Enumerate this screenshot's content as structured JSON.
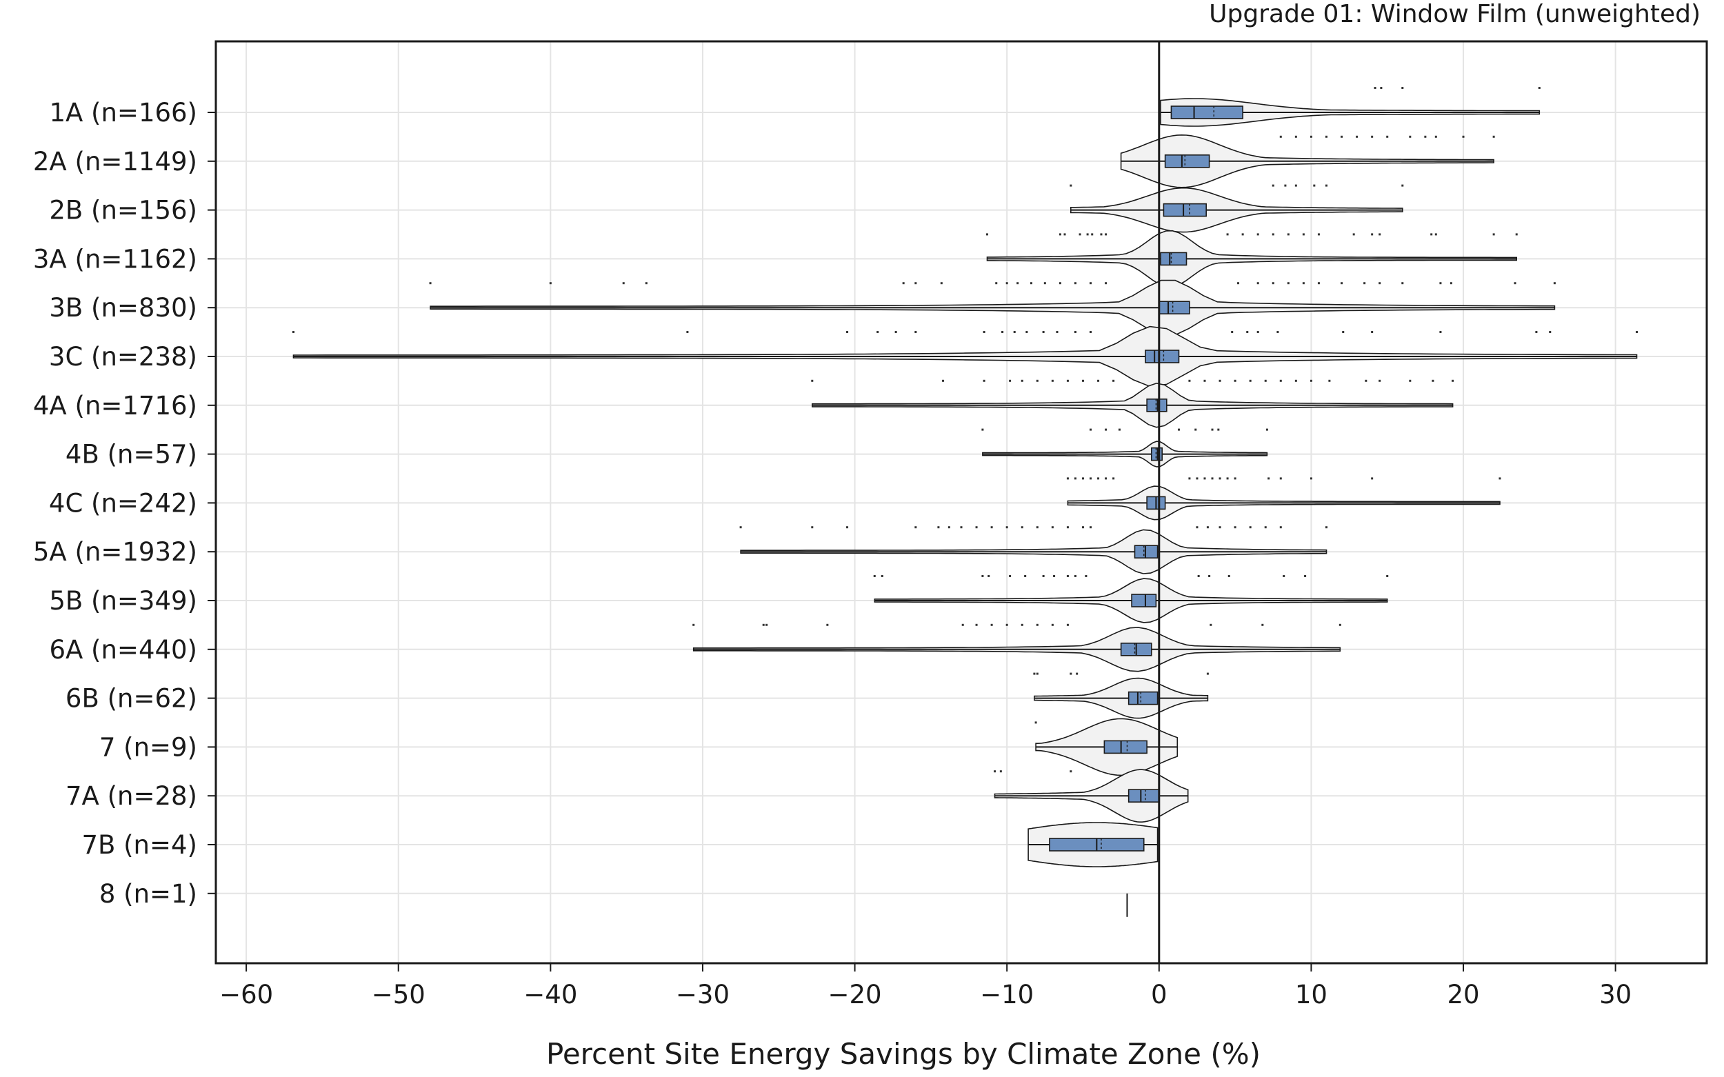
{
  "chart_data": {
    "type": "violin",
    "title": "Upgrade 01: Window Film (unweighted)",
    "xlabel": "Percent Site Energy Savings by Climate Zone (%)",
    "ylabel": "",
    "xlim": [
      -62,
      36
    ],
    "xticks": [
      -60,
      -50,
      -40,
      -30,
      -20,
      -10,
      0,
      10,
      20,
      30
    ],
    "xtick_labels": [
      "−60",
      "−50",
      "−40",
      "−30",
      "−20",
      "−10",
      "0",
      "10",
      "20",
      "30"
    ],
    "grid": true,
    "box_color": "#6b8fbf",
    "violin_fill": "#f2f2f2",
    "categories": [
      {
        "label": "1A (n=166)",
        "min": 0.1,
        "q1": 0.8,
        "median": 2.3,
        "mean": 3.6,
        "q3": 5.5,
        "max": 25.0,
        "peak": 0.6,
        "outliers": [
          14.2,
          14.6,
          16.0,
          25.0
        ]
      },
      {
        "label": "2A (n=1149)",
        "min": -2.5,
        "q1": 0.4,
        "median": 1.5,
        "mean": 1.7,
        "q3": 3.3,
        "max": 22.0,
        "peak": 1.2,
        "outliers": [
          8.0,
          9.0,
          10.0,
          11.0,
          12.0,
          13.0,
          14.0,
          15.0,
          16.5,
          17.5,
          18.2,
          20.0,
          22.0
        ]
      },
      {
        "label": "2B (n=156)",
        "min": -5.8,
        "q1": 0.3,
        "median": 1.6,
        "mean": 2.0,
        "q3": 3.1,
        "max": 16.0,
        "peak": 1.0,
        "outliers": [
          -5.8,
          7.5,
          8.3,
          9.0,
          10.2,
          11.0,
          16.0
        ]
      },
      {
        "label": "3A (n=1162)",
        "min": -11.3,
        "q1": 0.1,
        "median": 0.7,
        "mean": 0.8,
        "q3": 1.8,
        "max": 23.5,
        "peak": 1.3,
        "outliers": [
          -11.3,
          -6.5,
          -6.2,
          -5.2,
          -4.7,
          -4.4,
          -3.8,
          -3.5,
          4.5,
          5.5,
          6.5,
          7.5,
          8.5,
          9.5,
          10.5,
          12.8,
          14.0,
          14.5,
          17.9,
          18.2,
          22.0,
          23.5
        ]
      },
      {
        "label": "3B (n=830)",
        "min": -47.9,
        "q1": 0.0,
        "median": 0.6,
        "mean": 0.9,
        "q3": 2.0,
        "max": 26.0,
        "peak": 1.3,
        "outliers": [
          -47.9,
          -40.0,
          -35.2,
          -33.7,
          -16.8,
          -16.0,
          -14.3,
          -10.7,
          -10.0,
          -9.3,
          -8.4,
          -7.5,
          -6.5,
          -5.5,
          -4.5,
          -3.5,
          5.2,
          6.5,
          7.5,
          8.5,
          9.5,
          10.5,
          12.0,
          13.5,
          14.5,
          16.0,
          18.5,
          19.2,
          23.4,
          26.0
        ]
      },
      {
        "label": "3C (n=238)",
        "min": -56.9,
        "q1": -0.9,
        "median": -0.3,
        "mean": 0.3,
        "q3": 1.3,
        "max": 31.4,
        "peak": 1.4,
        "outliers": [
          -56.9,
          -31.0,
          -20.5,
          -18.5,
          -17.3,
          -16.0,
          -11.5,
          -10.3,
          -9.5,
          -8.7,
          -7.6,
          -6.7,
          -5.5,
          -4.5,
          4.8,
          5.8,
          6.5,
          7.8,
          12.1,
          14.0,
          18.5,
          24.8,
          25.7,
          31.4
        ]
      },
      {
        "label": "4A (n=1716)",
        "min": -22.8,
        "q1": -0.8,
        "median": -0.1,
        "mean": -0.2,
        "q3": 0.5,
        "max": 19.3,
        "peak": 1.0,
        "outliers": [
          -22.8,
          -14.2,
          -11.5,
          -9.8,
          -9.0,
          -8.0,
          -7.0,
          -6.0,
          -5.0,
          -4.0,
          -3.0,
          2.0,
          3.0,
          4.0,
          5.0,
          6.0,
          7.0,
          8.0,
          9.0,
          10.0,
          11.2,
          13.6,
          14.5,
          16.5,
          18.0,
          19.3
        ]
      },
      {
        "label": "4B (n=57)",
        "min": -11.6,
        "q1": -0.5,
        "median": -0.1,
        "mean": -0.2,
        "q3": 0.2,
        "max": 7.1,
        "peak": 0.55,
        "outliers": [
          -11.6,
          -4.5,
          -3.5,
          -2.6,
          1.3,
          2.4,
          3.5,
          3.9,
          7.1
        ]
      },
      {
        "label": "4C (n=242)",
        "min": -6.0,
        "q1": -0.8,
        "median": -0.2,
        "mean": 0.0,
        "q3": 0.4,
        "max": 22.4,
        "peak": 0.75,
        "outliers": [
          -6.0,
          -5.5,
          -5.0,
          -4.5,
          -4.0,
          -3.5,
          -3.0,
          2.0,
          2.5,
          3.0,
          3.5,
          4.0,
          4.5,
          5.0,
          7.2,
          8.0,
          10.0,
          14.0,
          22.4
        ]
      },
      {
        "label": "5A (n=1932)",
        "min": -27.5,
        "q1": -1.6,
        "median": -0.9,
        "mean": -1.0,
        "q3": -0.1,
        "max": 11.0,
        "peak": 1.0,
        "outliers": [
          -27.5,
          -22.8,
          -20.5,
          -16.0,
          -14.5,
          -13.8,
          -13.0,
          -12.0,
          -11.0,
          -10.0,
          -9.0,
          -8.0,
          -7.0,
          -6.0,
          -5.0,
          -4.5,
          2.5,
          3.2,
          4.0,
          5.0,
          6.0,
          7.0,
          8.0,
          11.0
        ]
      },
      {
        "label": "5B (n=349)",
        "min": -18.7,
        "q1": -1.8,
        "median": -0.9,
        "mean": -0.9,
        "q3": -0.2,
        "max": 15.0,
        "peak": 1.0,
        "outliers": [
          -18.7,
          -18.2,
          -11.6,
          -11.2,
          -9.8,
          -8.8,
          -7.6,
          -6.9,
          -6.0,
          -5.5,
          -4.8,
          2.6,
          3.3,
          4.6,
          8.2,
          9.6,
          15.0
        ]
      },
      {
        "label": "6A (n=440)",
        "min": -30.6,
        "q1": -2.5,
        "median": -1.5,
        "mean": -1.6,
        "q3": -0.5,
        "max": 11.9,
        "peak": 1.0,
        "outliers": [
          -30.6,
          -26.0,
          -25.8,
          -21.8,
          -12.9,
          -12.0,
          -11.0,
          -10.0,
          -9.0,
          -8.0,
          -7.0,
          -6.0,
          3.4,
          6.8,
          11.9
        ]
      },
      {
        "label": "6B (n=62)",
        "min": -8.2,
        "q1": -2.0,
        "median": -1.4,
        "mean": -1.2,
        "q3": -0.1,
        "max": 3.2,
        "peak": 0.9,
        "outliers": [
          -8.2,
          -8.0,
          -5.8,
          -5.4,
          3.2
        ]
      },
      {
        "label": "7 (n=9)",
        "min": -8.1,
        "q1": -3.6,
        "median": -2.5,
        "mean": -2.1,
        "q3": -0.8,
        "max": 1.2,
        "peak": 1.3,
        "outliers": [
          -8.1
        ]
      },
      {
        "label": "7A (n=28)",
        "min": -10.8,
        "q1": -2.0,
        "median": -1.2,
        "mean": -0.9,
        "q3": 0.0,
        "max": 1.9,
        "peak": 1.2,
        "outliers": [
          -10.8,
          -10.4,
          -5.8
        ]
      },
      {
        "label": "7B (n=4)",
        "min": -8.6,
        "q1": -7.2,
        "median": -4.1,
        "mean": -3.8,
        "q3": -1.0,
        "max": -0.1,
        "peak": 1.0,
        "outliers": []
      },
      {
        "label": "8 (n=1)",
        "min": -2.1,
        "q1": -2.1,
        "median": -2.1,
        "mean": -2.1,
        "q3": -2.1,
        "max": -2.1,
        "peak": 0.0,
        "outliers": []
      }
    ]
  }
}
